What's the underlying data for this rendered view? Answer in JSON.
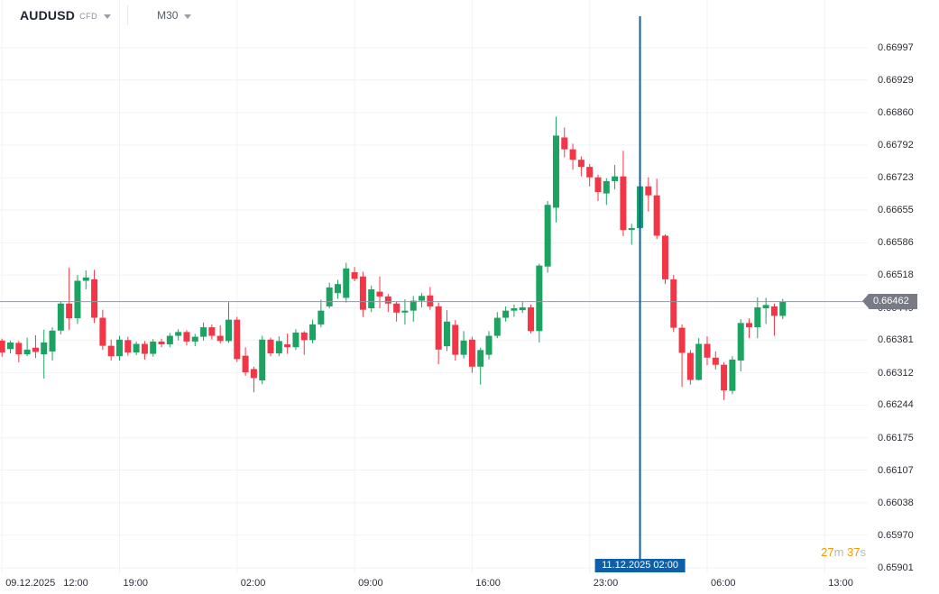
{
  "header": {
    "symbol": "AUDUSD",
    "instrument_type": "CFD",
    "timeframe": "M30"
  },
  "countdown": {
    "minutes": "27",
    "minutes_unit": "m",
    "seconds": "37",
    "seconds_unit": "s"
  },
  "price_marker": {
    "label": "0.66462",
    "value": 0.66462
  },
  "event_line": {
    "label": "11.12.2025 02:00",
    "candle_index": 76
  },
  "colors": {
    "up": "#1ca261",
    "down": "#f23645",
    "grid": "#f0f2f4",
    "axis_text": "#2a2e39",
    "current_price_line": "#9598a1",
    "price_badge_bg": "#787b86",
    "event_line_blue": "#0e5fa8",
    "countdown_accent": "#ff9800"
  },
  "chart_data": {
    "type": "candlestick",
    "symbol": "AUDUSD",
    "timeframe": "M30",
    "grid": true,
    "y_axis": {
      "side": "right",
      "price_top": 0.66997,
      "price_bottom": 0.65901,
      "ticks": [
        "0.66997",
        "0.66929",
        "0.66860",
        "0.66792",
        "0.66723",
        "0.66655",
        "0.66586",
        "0.66518",
        "0.66449",
        "0.66381",
        "0.66312",
        "0.66244",
        "0.66175",
        "0.66107",
        "0.66038",
        "0.65970",
        "0.65901"
      ]
    },
    "x_axis": {
      "ticks": [
        {
          "i": 0,
          "date": "09.12.2025",
          "label": "12:00"
        },
        {
          "i": 14,
          "label": "19:00"
        },
        {
          "i": 28,
          "label": "02:00"
        },
        {
          "i": 42,
          "label": "09:00"
        },
        {
          "i": 56,
          "label": "16:00"
        },
        {
          "i": 70,
          "label": "23:00"
        },
        {
          "i": 84,
          "label": "06:00"
        },
        {
          "i": 98,
          "label": "13:00"
        }
      ]
    },
    "candles": [
      {
        "t": "09.12 12:00",
        "o": 0.6638,
        "h": 0.66384,
        "l": 0.66346,
        "c": 0.66355
      },
      {
        "t": "09.12 12:30",
        "o": 0.66362,
        "h": 0.6638,
        "l": 0.66353,
        "c": 0.66376
      },
      {
        "t": "09.12 13:00",
        "o": 0.66375,
        "h": 0.66379,
        "l": 0.66334,
        "c": 0.66351
      },
      {
        "t": "09.12 13:30",
        "o": 0.66351,
        "h": 0.66386,
        "l": 0.66347,
        "c": 0.66361
      },
      {
        "t": "09.12 14:00",
        "o": 0.66365,
        "h": 0.66391,
        "l": 0.66343,
        "c": 0.66356
      },
      {
        "t": "09.12 14:30",
        "o": 0.66351,
        "h": 0.66403,
        "l": 0.663,
        "c": 0.66376
      },
      {
        "t": "09.12 15:00",
        "o": 0.66357,
        "h": 0.66408,
        "l": 0.66338,
        "c": 0.66401
      },
      {
        "t": "09.12 15:30",
        "o": 0.66401,
        "h": 0.66462,
        "l": 0.66393,
        "c": 0.66458
      },
      {
        "t": "09.12 16:00",
        "o": 0.66458,
        "h": 0.66534,
        "l": 0.66402,
        "c": 0.66427
      },
      {
        "t": "09.12 16:30",
        "o": 0.66427,
        "h": 0.66518,
        "l": 0.66415,
        "c": 0.66506
      },
      {
        "t": "09.12 17:00",
        "o": 0.66506,
        "h": 0.66528,
        "l": 0.66488,
        "c": 0.66513
      },
      {
        "t": "09.12 17:30",
        "o": 0.66509,
        "h": 0.66529,
        "l": 0.66417,
        "c": 0.66428
      },
      {
        "t": "09.12 18:00",
        "o": 0.66428,
        "h": 0.66445,
        "l": 0.6636,
        "c": 0.66369
      },
      {
        "t": "09.12 18:30",
        "o": 0.66369,
        "h": 0.66382,
        "l": 0.66338,
        "c": 0.66347
      },
      {
        "t": "09.12 19:00",
        "o": 0.66347,
        "h": 0.6639,
        "l": 0.66338,
        "c": 0.66382
      },
      {
        "t": "09.12 19:30",
        "o": 0.66381,
        "h": 0.66388,
        "l": 0.66348,
        "c": 0.66355
      },
      {
        "t": "09.12 20:00",
        "o": 0.66355,
        "h": 0.66378,
        "l": 0.66349,
        "c": 0.66373
      },
      {
        "t": "09.12 20:30",
        "o": 0.66373,
        "h": 0.66379,
        "l": 0.6634,
        "c": 0.66352
      },
      {
        "t": "09.12 21:00",
        "o": 0.66352,
        "h": 0.66383,
        "l": 0.66346,
        "c": 0.66378
      },
      {
        "t": "09.12 21:30",
        "o": 0.66378,
        "h": 0.66384,
        "l": 0.66366,
        "c": 0.66372
      },
      {
        "t": "09.12 22:00",
        "o": 0.66372,
        "h": 0.66396,
        "l": 0.66366,
        "c": 0.6639
      },
      {
        "t": "09.12 22:30",
        "o": 0.6639,
        "h": 0.66404,
        "l": 0.6638,
        "c": 0.66398
      },
      {
        "t": "09.12 23:00",
        "o": 0.66398,
        "h": 0.66402,
        "l": 0.6637,
        "c": 0.66378
      },
      {
        "t": "09.12 23:30",
        "o": 0.66378,
        "h": 0.66394,
        "l": 0.66368,
        "c": 0.66388
      },
      {
        "t": "10.12 00:00",
        "o": 0.66388,
        "h": 0.66418,
        "l": 0.6638,
        "c": 0.66408
      },
      {
        "t": "10.12 00:30",
        "o": 0.66408,
        "h": 0.66414,
        "l": 0.66382,
        "c": 0.6639
      },
      {
        "t": "10.12 01:00",
        "o": 0.6639,
        "h": 0.66412,
        "l": 0.66374,
        "c": 0.66379
      },
      {
        "t": "10.12 01:30",
        "o": 0.66379,
        "h": 0.66461,
        "l": 0.66375,
        "c": 0.66424
      },
      {
        "t": "10.12 02:00",
        "o": 0.66424,
        "h": 0.6643,
        "l": 0.66335,
        "c": 0.66341
      },
      {
        "t": "10.12 02:30",
        "o": 0.66348,
        "h": 0.66366,
        "l": 0.66306,
        "c": 0.66313
      },
      {
        "t": "10.12 03:00",
        "o": 0.6632,
        "h": 0.66325,
        "l": 0.66271,
        "c": 0.66301
      },
      {
        "t": "10.12 03:30",
        "o": 0.66296,
        "h": 0.6639,
        "l": 0.66288,
        "c": 0.66382
      },
      {
        "t": "10.12 04:00",
        "o": 0.66382,
        "h": 0.66386,
        "l": 0.66347,
        "c": 0.66353
      },
      {
        "t": "10.12 04:30",
        "o": 0.66353,
        "h": 0.66389,
        "l": 0.66347,
        "c": 0.66379
      },
      {
        "t": "10.12 05:00",
        "o": 0.66372,
        "h": 0.66395,
        "l": 0.66352,
        "c": 0.66366
      },
      {
        "t": "10.12 05:30",
        "o": 0.66366,
        "h": 0.66404,
        "l": 0.6636,
        "c": 0.66397
      },
      {
        "t": "10.12 06:00",
        "o": 0.66397,
        "h": 0.664,
        "l": 0.6635,
        "c": 0.66381
      },
      {
        "t": "10.12 06:30",
        "o": 0.66381,
        "h": 0.66424,
        "l": 0.66374,
        "c": 0.66414
      },
      {
        "t": "10.12 07:00",
        "o": 0.66414,
        "h": 0.66466,
        "l": 0.66408,
        "c": 0.66443
      },
      {
        "t": "10.12 07:30",
        "o": 0.66452,
        "h": 0.66502,
        "l": 0.66448,
        "c": 0.66492
      },
      {
        "t": "10.12 08:00",
        "o": 0.6648,
        "h": 0.66508,
        "l": 0.66468,
        "c": 0.66499
      },
      {
        "t": "10.12 08:30",
        "o": 0.6647,
        "h": 0.66544,
        "l": 0.6646,
        "c": 0.66532
      },
      {
        "t": "10.12 09:00",
        "o": 0.66524,
        "h": 0.66535,
        "l": 0.66505,
        "c": 0.6651
      },
      {
        "t": "10.12 09:30",
        "o": 0.66515,
        "h": 0.66525,
        "l": 0.6643,
        "c": 0.66445
      },
      {
        "t": "10.12 10:00",
        "o": 0.66448,
        "h": 0.66496,
        "l": 0.6644,
        "c": 0.66488
      },
      {
        "t": "10.12 10:30",
        "o": 0.66483,
        "h": 0.66515,
        "l": 0.66448,
        "c": 0.66473
      },
      {
        "t": "10.12 11:00",
        "o": 0.66473,
        "h": 0.66478,
        "l": 0.6644,
        "c": 0.66458
      },
      {
        "t": "10.12 11:30",
        "o": 0.66458,
        "h": 0.66462,
        "l": 0.6642,
        "c": 0.66439
      },
      {
        "t": "10.12 12:00",
        "o": 0.66439,
        "h": 0.66467,
        "l": 0.66414,
        "c": 0.66443
      },
      {
        "t": "10.12 12:30",
        "o": 0.66443,
        "h": 0.66474,
        "l": 0.6642,
        "c": 0.66464
      },
      {
        "t": "10.12 13:00",
        "o": 0.66464,
        "h": 0.6648,
        "l": 0.6645,
        "c": 0.66474
      },
      {
        "t": "10.12 13:30",
        "o": 0.66475,
        "h": 0.66493,
        "l": 0.66445,
        "c": 0.66452
      },
      {
        "t": "10.12 14:00",
        "o": 0.66452,
        "h": 0.6646,
        "l": 0.6633,
        "c": 0.66361
      },
      {
        "t": "10.12 14:30",
        "o": 0.66368,
        "h": 0.66444,
        "l": 0.66358,
        "c": 0.6642
      },
      {
        "t": "10.12 15:00",
        "o": 0.66413,
        "h": 0.66423,
        "l": 0.66338,
        "c": 0.6635
      },
      {
        "t": "10.12 15:30",
        "o": 0.6635,
        "h": 0.664,
        "l": 0.66342,
        "c": 0.6638
      },
      {
        "t": "10.12 16:00",
        "o": 0.66382,
        "h": 0.66388,
        "l": 0.66312,
        "c": 0.66325
      },
      {
        "t": "10.12 16:30",
        "o": 0.66325,
        "h": 0.66365,
        "l": 0.66287,
        "c": 0.6636
      },
      {
        "t": "10.12 17:00",
        "o": 0.6635,
        "h": 0.664,
        "l": 0.6634,
        "c": 0.6639
      },
      {
        "t": "10.12 17:30",
        "o": 0.6639,
        "h": 0.6644,
        "l": 0.66385,
        "c": 0.66428
      },
      {
        "t": "10.12 18:00",
        "o": 0.66428,
        "h": 0.66452,
        "l": 0.6642,
        "c": 0.66443
      },
      {
        "t": "10.12 18:30",
        "o": 0.66443,
        "h": 0.66456,
        "l": 0.6643,
        "c": 0.66448
      },
      {
        "t": "10.12 19:00",
        "o": 0.66444,
        "h": 0.66461,
        "l": 0.66438,
        "c": 0.6645
      },
      {
        "t": "10.12 19:30",
        "o": 0.6645,
        "h": 0.66456,
        "l": 0.66395,
        "c": 0.664
      },
      {
        "t": "10.12 20:00",
        "o": 0.664,
        "h": 0.66542,
        "l": 0.66376,
        "c": 0.66538
      },
      {
        "t": "10.12 20:30",
        "o": 0.66536,
        "h": 0.66674,
        "l": 0.66523,
        "c": 0.66666
      },
      {
        "t": "10.12 21:00",
        "o": 0.6666,
        "h": 0.66852,
        "l": 0.66629,
        "c": 0.66812
      },
      {
        "t": "10.12 21:30",
        "o": 0.66808,
        "h": 0.66829,
        "l": 0.66766,
        "c": 0.66783
      },
      {
        "t": "10.12 22:00",
        "o": 0.66783,
        "h": 0.66795,
        "l": 0.6674,
        "c": 0.66761
      },
      {
        "t": "10.12 22:30",
        "o": 0.66761,
        "h": 0.66768,
        "l": 0.66726,
        "c": 0.66746
      },
      {
        "t": "10.12 23:00",
        "o": 0.66746,
        "h": 0.66752,
        "l": 0.66705,
        "c": 0.66724
      },
      {
        "t": "10.12 23:30",
        "o": 0.66724,
        "h": 0.6673,
        "l": 0.66674,
        "c": 0.66693
      },
      {
        "t": "11.12 00:00",
        "o": 0.6669,
        "h": 0.66722,
        "l": 0.66666,
        "c": 0.66716
      },
      {
        "t": "11.12 00:30",
        "o": 0.66716,
        "h": 0.6675,
        "l": 0.66699,
        "c": 0.66726
      },
      {
        "t": "11.12 01:00",
        "o": 0.66726,
        "h": 0.6678,
        "l": 0.666,
        "c": 0.66613
      },
      {
        "t": "11.12 01:30",
        "o": 0.66613,
        "h": 0.66626,
        "l": 0.66582,
        "c": 0.66617
      },
      {
        "t": "11.12 02:00",
        "o": 0.66617,
        "h": 0.66718,
        "l": 0.66604,
        "c": 0.66705
      },
      {
        "t": "11.12 02:30",
        "o": 0.66705,
        "h": 0.66724,
        "l": 0.66652,
        "c": 0.66686
      },
      {
        "t": "11.12 03:00",
        "o": 0.66686,
        "h": 0.66721,
        "l": 0.66594,
        "c": 0.66601
      },
      {
        "t": "11.12 03:30",
        "o": 0.66601,
        "h": 0.66604,
        "l": 0.66499,
        "c": 0.66509
      },
      {
        "t": "11.12 04:00",
        "o": 0.66509,
        "h": 0.66518,
        "l": 0.66398,
        "c": 0.66407
      },
      {
        "t": "11.12 04:30",
        "o": 0.66407,
        "h": 0.66414,
        "l": 0.66282,
        "c": 0.66354
      },
      {
        "t": "11.12 05:00",
        "o": 0.66354,
        "h": 0.6636,
        "l": 0.66287,
        "c": 0.66297
      },
      {
        "t": "11.12 05:30",
        "o": 0.66297,
        "h": 0.66385,
        "l": 0.66296,
        "c": 0.66373
      },
      {
        "t": "11.12 06:00",
        "o": 0.66373,
        "h": 0.66389,
        "l": 0.66328,
        "c": 0.66344
      },
      {
        "t": "11.12 06:30",
        "o": 0.66344,
        "h": 0.66357,
        "l": 0.66319,
        "c": 0.66329
      },
      {
        "t": "11.12 07:00",
        "o": 0.66329,
        "h": 0.66334,
        "l": 0.66255,
        "c": 0.66275
      },
      {
        "t": "11.12 07:30",
        "o": 0.66274,
        "h": 0.66347,
        "l": 0.66267,
        "c": 0.6634
      },
      {
        "t": "11.12 08:00",
        "o": 0.66338,
        "h": 0.66425,
        "l": 0.66315,
        "c": 0.66417
      },
      {
        "t": "11.12 08:30",
        "o": 0.66417,
        "h": 0.66427,
        "l": 0.66385,
        "c": 0.66408
      },
      {
        "t": "11.12 09:00",
        "o": 0.66408,
        "h": 0.66471,
        "l": 0.66385,
        "c": 0.6645
      },
      {
        "t": "11.12 09:30",
        "o": 0.66448,
        "h": 0.6647,
        "l": 0.66415,
        "c": 0.66455
      },
      {
        "t": "11.12 10:00",
        "o": 0.66452,
        "h": 0.66458,
        "l": 0.6639,
        "c": 0.66432
      },
      {
        "t": "11.12 10:30",
        "o": 0.66432,
        "h": 0.66468,
        "l": 0.66425,
        "c": 0.66462
      }
    ]
  }
}
